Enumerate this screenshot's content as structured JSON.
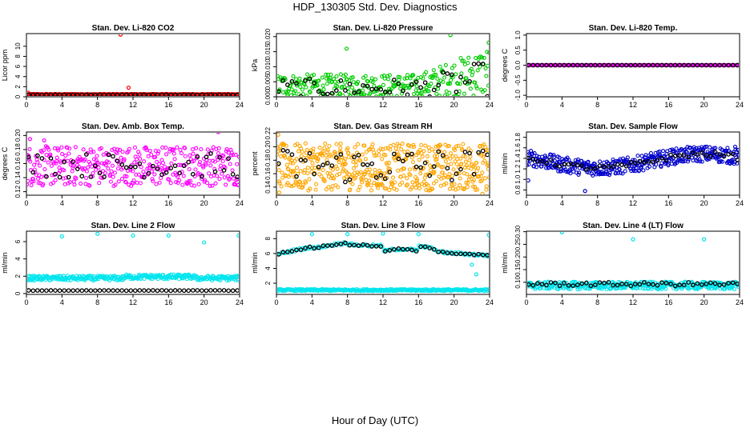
{
  "title": "HDP_130305  Std. Dev. Diagnostics",
  "xlabel": "Hour of Day (UTC)",
  "colors": {
    "co2": "#ff0000",
    "pressure": "#00cc00",
    "temp": "#ff00ff",
    "box_temp": "#ff00ff",
    "rh": "#ffa500",
    "sample_flow": "#0000cc",
    "line_flow": "#00e5ee",
    "hourly": "#000000"
  },
  "chart_data": [
    {
      "id": "co2",
      "type": "scatter",
      "title": "Stan. Dev. Li-820 CO2",
      "ylabel": "Licor ppm",
      "xlim": [
        0,
        24
      ],
      "ylim": [
        0,
        12.5
      ],
      "xticks": [
        0,
        4,
        8,
        12,
        16,
        20,
        24
      ],
      "yticks": [
        0,
        2,
        4,
        6,
        8,
        10
      ],
      "color_key": "co2",
      "pattern": {
        "kind": "flat",
        "base": 0.5,
        "noise": 0.05,
        "n": 200
      },
      "outliers": [
        [
          10.6,
          12.3
        ],
        [
          11.5,
          1.8
        ],
        [
          0.2,
          0.8
        ]
      ],
      "hourly": {
        "base": 0.4,
        "noise": 0.02
      }
    },
    {
      "id": "pressure",
      "type": "scatter",
      "title": "Stan. Dev. Li-820 Pressure",
      "ylabel": "kPa",
      "xlim": [
        0,
        24
      ],
      "ylim": [
        0,
        0.021
      ],
      "xticks": [
        0,
        4,
        8,
        12,
        16,
        20,
        24
      ],
      "yticks": [
        0.0,
        0.005,
        0.01,
        0.015,
        0.02
      ],
      "ytick_labels": [
        "0.000",
        "0.005",
        "0.010",
        "0.015",
        "0.020"
      ],
      "color_key": "pressure",
      "pattern": {
        "kind": "pressure",
        "n": 300
      },
      "outliers": [
        [
          7.9,
          0.016
        ],
        [
          19.6,
          0.0205
        ],
        [
          23.9,
          0.018
        ]
      ],
      "hourly": {
        "kind": "pressure"
      }
    },
    {
      "id": "temp",
      "type": "scatter",
      "title": "Stan. Dev. Li-820 Temp.",
      "ylabel": "degrees C",
      "xlim": [
        0,
        24
      ],
      "ylim": [
        -1.05,
        1.05
      ],
      "xticks": [
        0,
        4,
        8,
        12,
        16,
        20,
        24
      ],
      "yticks": [
        -1.0,
        -0.5,
        0.0,
        0.5,
        1.0
      ],
      "ytick_labels": [
        "-1.0",
        "-0.5",
        "0.0",
        "0.5",
        "1.0"
      ],
      "color_key": "temp",
      "pattern": {
        "kind": "flat",
        "base": 0.0,
        "noise": 0.003,
        "n": 220
      },
      "outliers": [],
      "hourly": {
        "base": 0.0,
        "noise": 0.0
      }
    },
    {
      "id": "box_temp",
      "type": "scatter",
      "title": "Stan. Dev. Amb. Box Temp.",
      "ylabel": "degrees C",
      "xlim": [
        0,
        24
      ],
      "ylim": [
        0.115,
        0.205
      ],
      "xticks": [
        0,
        4,
        8,
        12,
        16,
        20,
        24
      ],
      "yticks": [
        0.12,
        0.14,
        0.16,
        0.18,
        0.2
      ],
      "ytick_labels": [
        "0.12",
        "0.14",
        "0.16",
        "0.18",
        "0.20"
      ],
      "color_key": "box_temp",
      "pattern": {
        "kind": "band",
        "lo": 0.128,
        "hi": 0.185,
        "n": 380
      },
      "outliers": [
        [
          0.4,
          0.195
        ],
        [
          2.0,
          0.193
        ],
        [
          21.6,
          0.205
        ]
      ],
      "hourly": {
        "lo": 0.14,
        "hi": 0.175
      }
    },
    {
      "id": "rh",
      "type": "scatter",
      "title": "Stan. Dev. Gas Stream RH",
      "ylabel": "percent",
      "xlim": [
        0,
        24
      ],
      "ylim": [
        0.128,
        0.222
      ],
      "xticks": [
        0,
        4,
        8,
        12,
        16,
        20,
        24
      ],
      "yticks": [
        0.14,
        0.16,
        0.18,
        0.2,
        0.22
      ],
      "ytick_labels": [
        "0.14",
        "0.16",
        "0.18",
        "0.20",
        "0.22"
      ],
      "color_key": "rh",
      "pattern": {
        "kind": "band",
        "lo": 0.135,
        "hi": 0.205,
        "n": 520
      },
      "outliers": [
        [
          0.2,
          0.218
        ],
        [
          0.3,
          0.132
        ],
        [
          23.2,
          0.13
        ]
      ],
      "hourly": {
        "lo": 0.145,
        "hi": 0.198
      }
    },
    {
      "id": "sample_flow",
      "type": "scatter",
      "title": "Stan. Dev. Sample Flow",
      "ylabel": "ml/min",
      "xlim": [
        0,
        24
      ],
      "ylim": [
        0.7,
        1.9
      ],
      "xticks": [
        0,
        4,
        8,
        12,
        16,
        20,
        24
      ],
      "yticks": [
        0.8,
        1.0,
        1.2,
        1.4,
        1.6,
        1.8
      ],
      "ytick_labels": [
        "0.8",
        "1.0",
        "1.2",
        "1.4",
        "1.6",
        "1.8"
      ],
      "color_key": "sample_flow",
      "pattern": {
        "kind": "wave",
        "n": 420
      },
      "outliers": [
        [
          6.6,
          0.78
        ],
        [
          23.5,
          1.62
        ],
        [
          0.2,
          0.98
        ]
      ],
      "hourly": {
        "kind": "wave"
      }
    },
    {
      "id": "line2",
      "type": "scatter",
      "title": "Stan. Dev. Line 2 Flow",
      "ylabel": "ml/min",
      "xlim": [
        0,
        24
      ],
      "ylim": [
        -0.1,
        7.2
      ],
      "xticks": [
        0,
        4,
        8,
        12,
        16,
        20,
        24
      ],
      "yticks": [
        0,
        2,
        4,
        6
      ],
      "color_key": "line_flow",
      "pattern": {
        "kind": "line2",
        "n": 330
      },
      "outliers": [
        [
          4.0,
          6.6
        ],
        [
          8.0,
          6.9
        ],
        [
          12.0,
          6.7
        ],
        [
          16.0,
          6.7
        ],
        [
          20.0,
          5.9
        ],
        [
          23.9,
          6.7
        ]
      ],
      "hourly": {
        "base": 0.35,
        "noise": 0.02
      }
    },
    {
      "id": "line3",
      "type": "scatter",
      "title": "Stan. Dev. Line 3 Flow",
      "ylabel": "ml/min",
      "xlim": [
        0,
        24
      ],
      "ylim": [
        0.5,
        9.0
      ],
      "xticks": [
        0,
        4,
        8,
        12,
        16,
        20,
        24
      ],
      "yticks": [
        2,
        4,
        6,
        8
      ],
      "color_key": "line_flow",
      "pattern": {
        "kind": "line3",
        "n": 320
      },
      "outliers": [
        [
          4.0,
          8.6
        ],
        [
          8.0,
          8.6
        ],
        [
          12.0,
          8.7
        ],
        [
          16.0,
          8.6
        ],
        [
          22.0,
          4.5
        ],
        [
          22.5,
          3.2
        ],
        [
          23.9,
          8.5
        ]
      ],
      "hourly": {
        "kind": "line3"
      }
    },
    {
      "id": "line4",
      "type": "scatter",
      "title": "Stan. Dev. Line 4 (LT) Flow",
      "ylabel": "ml/min",
      "xlim": [
        0,
        24
      ],
      "ylim": [
        0.052,
        0.302
      ],
      "xticks": [
        0,
        4,
        8,
        12,
        16,
        20,
        24
      ],
      "yticks": [
        0.1,
        0.15,
        0.2,
        0.25,
        0.3
      ],
      "ytick_labels": [
        "0.10",
        "0.15",
        "0.20",
        "0.25",
        "0.30"
      ],
      "color_key": "line_flow",
      "pattern": {
        "kind": "band",
        "lo": 0.072,
        "hi": 0.102,
        "n": 360
      },
      "outliers": [
        [
          4.0,
          0.298
        ],
        [
          12.0,
          0.27
        ],
        [
          20.0,
          0.27
        ]
      ],
      "hourly": {
        "lo": 0.085,
        "hi": 0.1
      }
    }
  ]
}
